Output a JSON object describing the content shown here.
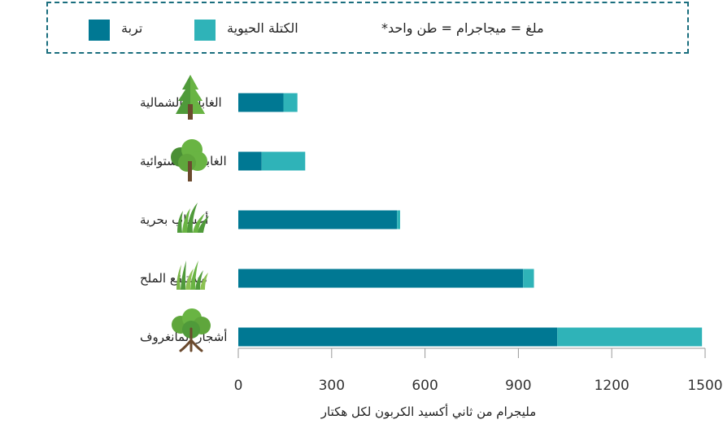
{
  "legend": {
    "soil_label": "تربة",
    "biomass_label": "الكتلة الحيوية",
    "note": "ملغ = ميجاجرام = طن واحد*"
  },
  "colors": {
    "soil": "#007893",
    "biomass": "#2fb3b8"
  },
  "icons": [
    "pine-tree-icon",
    "round-tree-icon",
    "seagrass-icon",
    "marsh-grass-icon",
    "mangrove-tree-icon"
  ],
  "chart_data": {
    "type": "bar",
    "orientation": "horizontal",
    "stacked": true,
    "categories": [
      "الغابات الشمالية",
      "الغابات الاستوائية",
      "أعشاب بحرية",
      "مستنقع الملح",
      "أشجار المانغروف"
    ],
    "series": [
      {
        "name": "تربة",
        "values": [
          145,
          75,
          510,
          915,
          1025
        ]
      },
      {
        "name": "الكتلة الحيوية",
        "values": [
          45,
          140,
          10,
          35,
          465
        ]
      }
    ],
    "xlim": [
      0,
      1500
    ],
    "xticks": [
      0,
      300,
      600,
      900,
      1200,
      1500
    ],
    "xlabel": "مليجرام من ثاني أكسيد الكربون لكل هكتار"
  }
}
